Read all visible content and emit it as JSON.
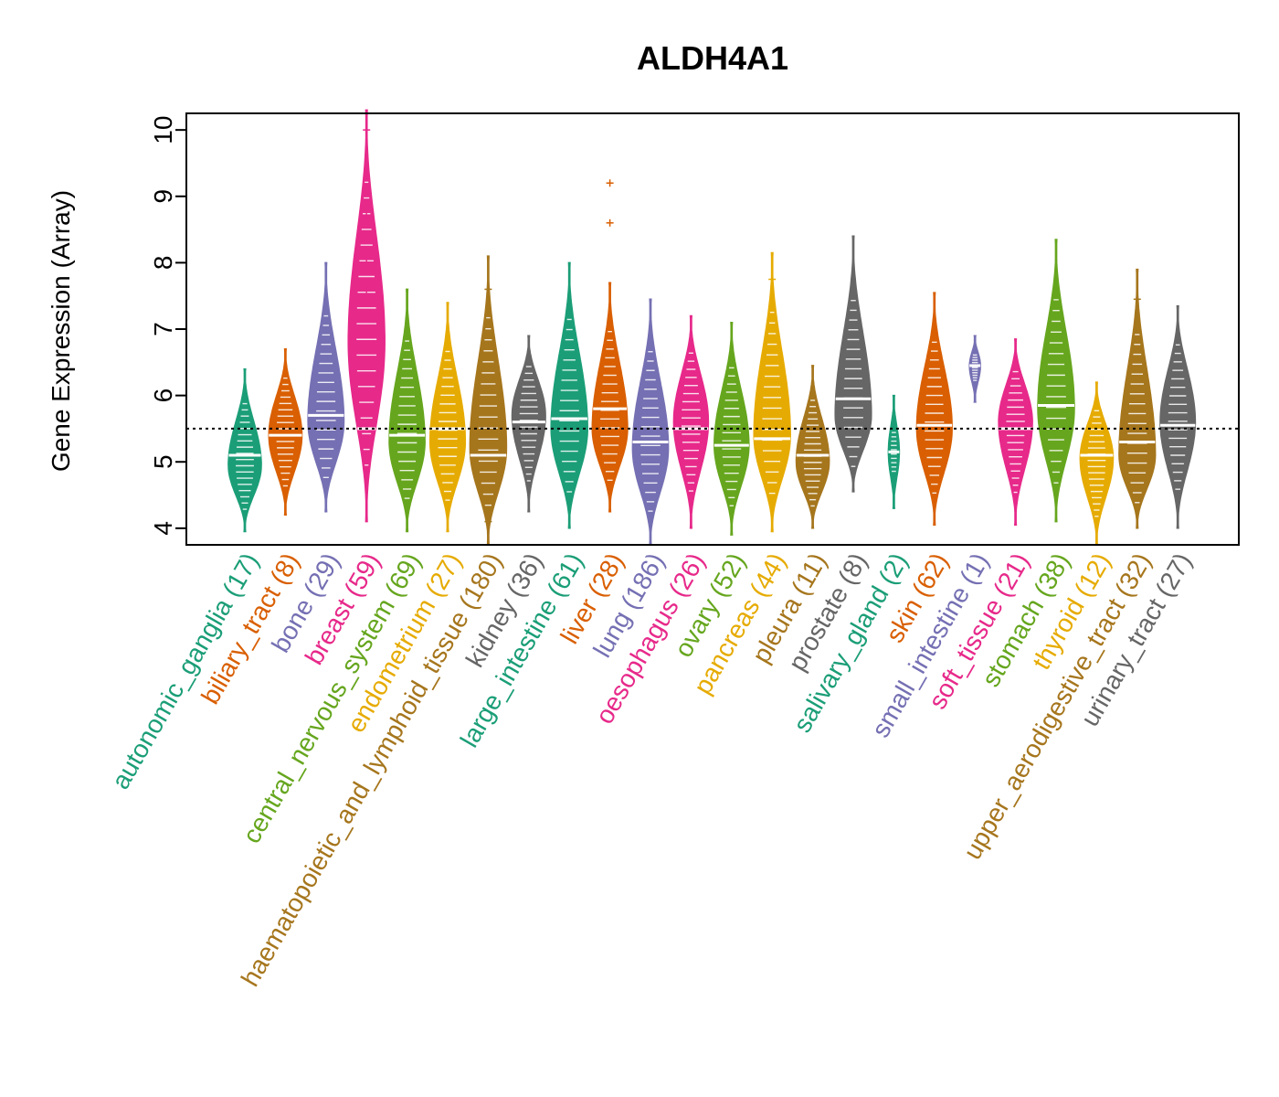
{
  "chart_data": {
    "type": "violin",
    "title": "ALDH4A1",
    "ylabel": "Gene Expression (Array)",
    "xlabel": "",
    "ylim": [
      3.75,
      10.25
    ],
    "yticks": [
      4,
      5,
      6,
      7,
      8,
      9,
      10
    ],
    "reference_line": 5.5,
    "categories": [
      {
        "name": "autonomic_ganglia",
        "n": "(17)",
        "color": "#1B9E77",
        "min": 3.95,
        "max": 6.4,
        "median": 5.1,
        "mode": 4.95
      },
      {
        "name": "biliary_tract",
        "n": "(8)",
        "color": "#D95F02",
        "min": 4.2,
        "max": 6.7,
        "median": 5.4,
        "mode": 5.4
      },
      {
        "name": "bone",
        "n": "(29)",
        "color": "#7570B3",
        "min": 4.25,
        "max": 8.0,
        "median": 5.7,
        "mode": 5.6
      },
      {
        "name": "breast",
        "n": "(59)",
        "color": "#E7298A",
        "min": 4.1,
        "max": 10.3,
        "median": 5.5,
        "mode": 6.8,
        "outliers": [
          10.0,
          8.7,
          8.05,
          7.6
        ]
      },
      {
        "name": "central_nervous_system",
        "n": "(69)",
        "color": "#66A61E",
        "min": 3.95,
        "max": 7.6,
        "median": 5.4,
        "mode": 5.3
      },
      {
        "name": "endometrium",
        "n": "(27)",
        "color": "#E6AB02",
        "min": 3.95,
        "max": 7.4,
        "median": 5.5,
        "mode": 5.3
      },
      {
        "name": "haematopoietic_and_lymphoid_tissue",
        "n": "(180)",
        "color": "#A6761D",
        "min": 3.75,
        "max": 8.1,
        "median": 5.1,
        "mode": 5.2,
        "outliers": [
          7.6,
          4.1
        ]
      },
      {
        "name": "kidney",
        "n": "(36)",
        "color": "#666666",
        "min": 4.25,
        "max": 6.9,
        "median": 5.6,
        "mode": 5.7
      },
      {
        "name": "large_intestine",
        "n": "(61)",
        "color": "#1B9E77",
        "min": 4.0,
        "max": 8.0,
        "median": 5.65,
        "mode": 5.5
      },
      {
        "name": "liver",
        "n": "(28)",
        "color": "#D95F02",
        "min": 4.25,
        "max": 7.7,
        "median": 5.8,
        "mode": 5.5,
        "outliers": [
          9.2,
          8.6
        ]
      },
      {
        "name": "lung",
        "n": "(186)",
        "color": "#7570B3",
        "min": 3.75,
        "max": 7.45,
        "median": 5.3,
        "mode": 5.2
      },
      {
        "name": "oesophagus",
        "n": "(26)",
        "color": "#E7298A",
        "min": 4.0,
        "max": 7.2,
        "median": 5.5,
        "mode": 5.6
      },
      {
        "name": "ovary",
        "n": "(52)",
        "color": "#66A61E",
        "min": 3.9,
        "max": 7.1,
        "median": 5.25,
        "mode": 5.25
      },
      {
        "name": "pancreas",
        "n": "(44)",
        "color": "#E6AB02",
        "min": 3.95,
        "max": 8.15,
        "median": 5.35,
        "mode": 5.4,
        "outliers": [
          7.75
        ]
      },
      {
        "name": "pleura",
        "n": "(11)",
        "color": "#A6761D",
        "min": 4.0,
        "max": 6.45,
        "median": 5.1,
        "mode": 5.0
      },
      {
        "name": "prostate",
        "n": "(8)",
        "color": "#666666",
        "min": 4.55,
        "max": 8.4,
        "median": 5.95,
        "mode": 5.7
      },
      {
        "name": "salivary_gland",
        "n": "(2)",
        "color": "#1B9E77",
        "min": 4.3,
        "max": 6.0,
        "median": 5.15,
        "mode": 5.15
      },
      {
        "name": "skin",
        "n": "(62)",
        "color": "#D95F02",
        "min": 4.05,
        "max": 7.55,
        "median": 5.55,
        "mode": 5.5
      },
      {
        "name": "small_intestine",
        "n": "(1)",
        "color": "#7570B3",
        "min": 5.9,
        "max": 6.9,
        "median": 6.45,
        "mode": 6.45
      },
      {
        "name": "soft_tissue",
        "n": "(21)",
        "color": "#E7298A",
        "min": 4.05,
        "max": 6.85,
        "median": 5.5,
        "mode": 5.6
      },
      {
        "name": "stomach",
        "n": "(38)",
        "color": "#66A61E",
        "min": 4.1,
        "max": 8.35,
        "median": 5.85,
        "mode": 5.8
      },
      {
        "name": "thyroid",
        "n": "(12)",
        "color": "#E6AB02",
        "min": 3.75,
        "max": 6.2,
        "median": 5.1,
        "mode": 5.05
      },
      {
        "name": "upper_aerodigestive_tract",
        "n": "(32)",
        "color": "#A6761D",
        "min": 4.0,
        "max": 7.9,
        "median": 5.3,
        "mode": 5.1,
        "outliers": [
          7.45
        ]
      },
      {
        "name": "urinary_tract",
        "n": "(27)",
        "color": "#666666",
        "min": 4.0,
        "max": 7.35,
        "median": 5.55,
        "mode": 5.6
      }
    ]
  }
}
